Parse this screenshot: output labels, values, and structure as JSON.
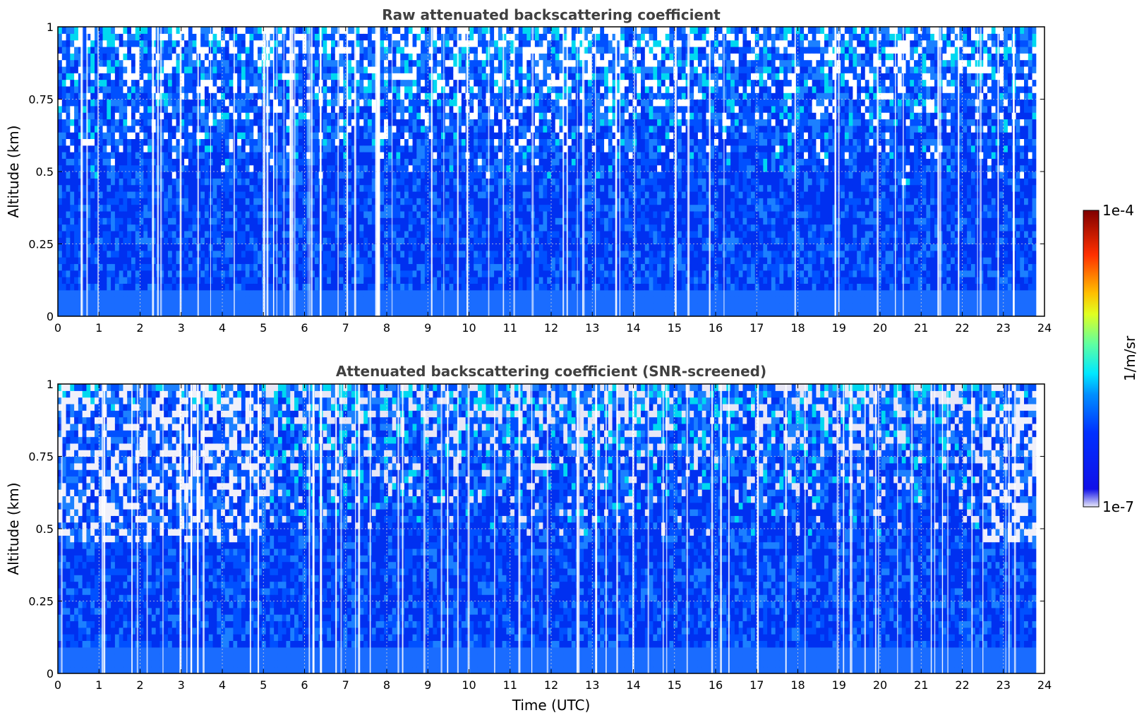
{
  "chart_data": [
    {
      "type": "heatmap",
      "title": "Raw attenuated backscattering coefficient",
      "xlabel": "",
      "ylabel": "Altitude (km)",
      "xlim": [
        0,
        24
      ],
      "ylim": [
        0,
        1
      ],
      "xticks": [
        "0",
        "1",
        "2",
        "3",
        "4",
        "5",
        "6",
        "7",
        "8",
        "9",
        "10",
        "11",
        "12",
        "13",
        "14",
        "15",
        "16",
        "17",
        "18",
        "19",
        "20",
        "21",
        "22",
        "23",
        "24"
      ],
      "yticks": [
        "0",
        "0.25",
        "0.5",
        "0.75",
        "1"
      ],
      "grid": true,
      "data_end_time": 23.8,
      "colormap": "jet",
      "scale": "log"
    },
    {
      "type": "heatmap",
      "title": "Attenuated backscattering coefficient (SNR-screened)",
      "xlabel": "Time (UTC)",
      "ylabel": "Altitude (km)",
      "xlim": [
        0,
        24
      ],
      "ylim": [
        0,
        1
      ],
      "xticks": [
        "0",
        "1",
        "2",
        "3",
        "4",
        "5",
        "6",
        "7",
        "8",
        "9",
        "10",
        "11",
        "12",
        "13",
        "14",
        "15",
        "16",
        "17",
        "18",
        "19",
        "20",
        "21",
        "22",
        "23",
        "24"
      ],
      "yticks": [
        "0",
        "0.25",
        "0.5",
        "0.75",
        "1"
      ],
      "grid": true,
      "data_end_time": 23.8,
      "colormap": "jet",
      "scale": "log"
    }
  ],
  "colorbar": {
    "label": "1/m/sr",
    "max_label": "1e-4",
    "min_label": "1e-7",
    "colors": [
      "#e8e8f8",
      "#0000ff",
      "#0080ff",
      "#00e0ff",
      "#80ff80",
      "#ffff00",
      "#ff8000",
      "#ff0000",
      "#800000"
    ]
  }
}
